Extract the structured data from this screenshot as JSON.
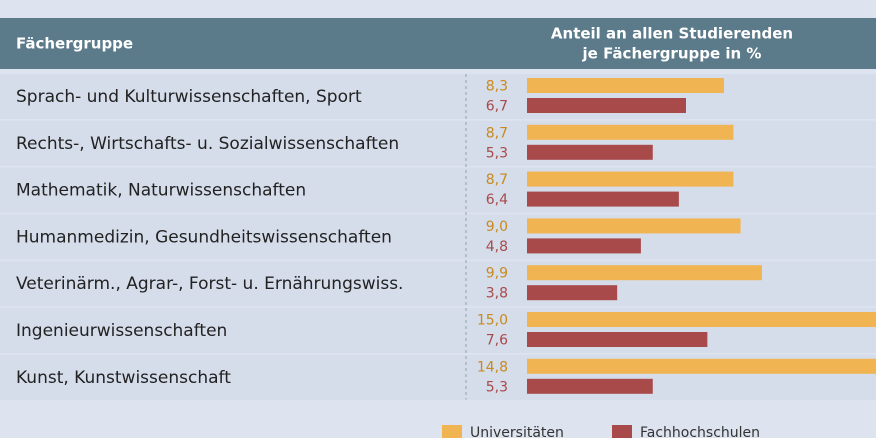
{
  "chart_data": {
    "type": "bar",
    "category_header": "Fächergruppe",
    "value_header": [
      "Anteil an allen Studierenden",
      "je Fächergruppe in %"
    ],
    "categories": [
      "Sprach- und Kulturwissenschaften, Sport",
      "Rechts-, Wirtschafts- u. Sozialwissenschaften",
      "Mathematik, Naturwissenschaften",
      "Humanmedizin, Gesundheitswissenschaften",
      "Veterinärm., Agrar-, Forst- u. Ernährungswiss.",
      "Ingenieurwissenschaften",
      "Kunst, Kunstwissenschaft"
    ],
    "series": [
      {
        "name": "Universitäten",
        "color": "#f0b452",
        "label_color": "#c98a1d",
        "values": [
          8.3,
          8.7,
          8.7,
          9.0,
          9.9,
          15.0,
          14.8
        ],
        "value_labels": [
          "8,3",
          "8,7",
          "8,7",
          "9,0",
          "9,9",
          "15,0",
          "14,8"
        ]
      },
      {
        "name": "Fachhochschulen",
        "color": "#a84a4a",
        "label_color": "#a84a4a",
        "values": [
          6.7,
          5.3,
          6.4,
          4.8,
          3.8,
          7.6,
          5.3
        ],
        "value_labels": [
          "6,7",
          "5,3",
          "6,4",
          "4,8",
          "3,8",
          "7,6",
          "5,3"
        ]
      }
    ]
  }
}
